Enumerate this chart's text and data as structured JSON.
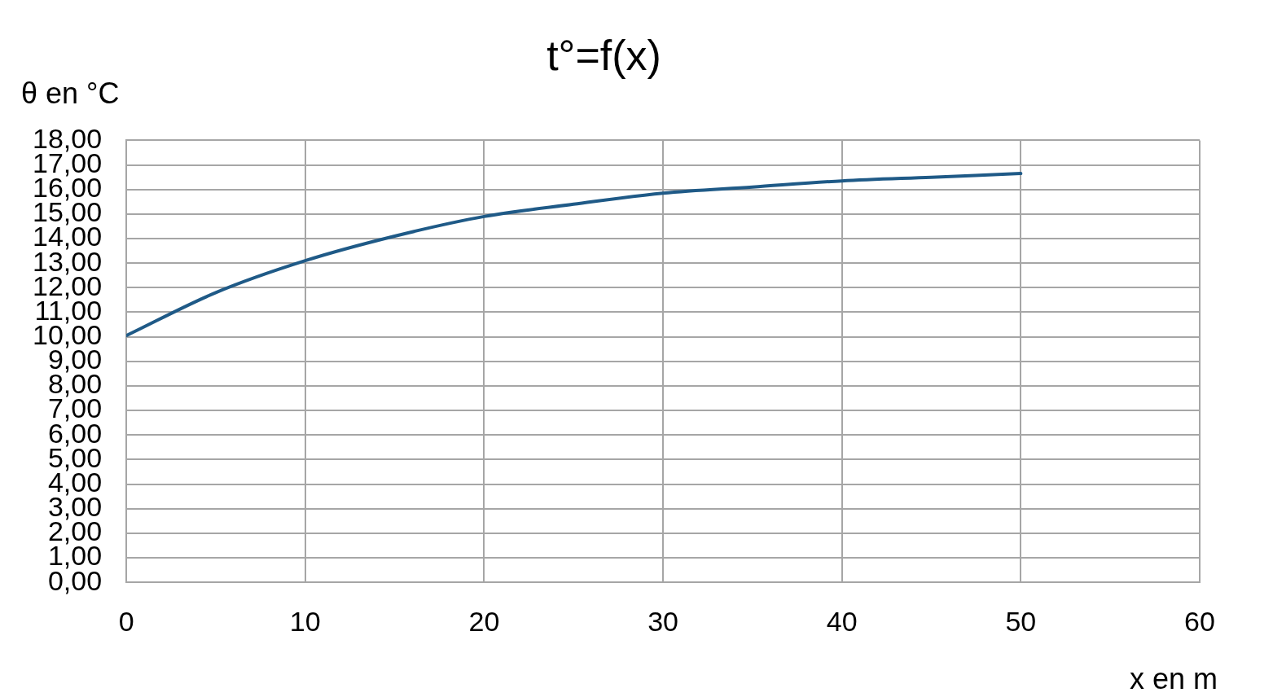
{
  "chart_data": {
    "type": "line",
    "title": "t°=f(x)",
    "ylabel": "θ en °C",
    "xlabel": "x en m",
    "series": [
      {
        "color": "#1f5a87",
        "x": [
          0,
          5,
          10,
          15,
          20,
          25,
          30,
          35,
          40,
          45,
          50
        ],
        "values": [
          10.05,
          11.8,
          13.1,
          14.1,
          14.9,
          15.4,
          15.85,
          16.1,
          16.35,
          16.5,
          16.65
        ]
      }
    ],
    "xlim": [
      0,
      60
    ],
    "xticks": [
      0,
      10,
      20,
      30,
      40,
      50,
      60
    ],
    "ylim": [
      0,
      18
    ],
    "yticks": [
      {
        "value": 0,
        "label": "0,00"
      },
      {
        "value": 1,
        "label": "1,00"
      },
      {
        "value": 2,
        "label": "2,00"
      },
      {
        "value": 3,
        "label": "3,00"
      },
      {
        "value": 4,
        "label": "4,00"
      },
      {
        "value": 5,
        "label": "5,00"
      },
      {
        "value": 6,
        "label": "6,00"
      },
      {
        "value": 7,
        "label": "7,00"
      },
      {
        "value": 8,
        "label": "8,00"
      },
      {
        "value": 9,
        "label": "9,00"
      },
      {
        "value": 10,
        "label": "10,00"
      },
      {
        "value": 11,
        "label": "11,00"
      },
      {
        "value": 12,
        "label": "12,00"
      },
      {
        "value": 13,
        "label": "13,00"
      },
      {
        "value": 14,
        "label": "14,00"
      },
      {
        "value": 15,
        "label": "15,00"
      },
      {
        "value": 16,
        "label": "16,00"
      },
      {
        "value": 17,
        "label": "17,00"
      },
      {
        "value": 18,
        "label": "18,00"
      }
    ],
    "grid": true,
    "legend": false,
    "marker": "none",
    "line_style": "solid"
  }
}
